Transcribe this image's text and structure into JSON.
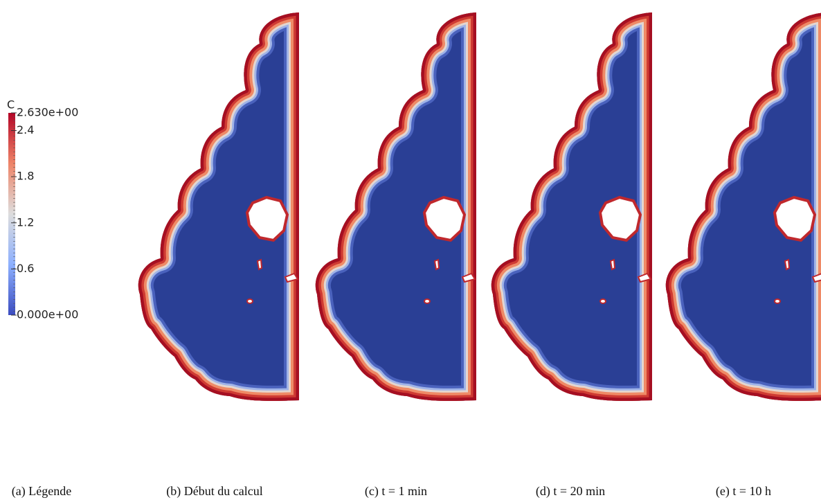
{
  "legend": {
    "title": "C",
    "ticks": [
      {
        "value": 2.63,
        "label": "2.630e+00"
      },
      2.4,
      1.8,
      1.2,
      0.6,
      {
        "value": 0,
        "label": "0.000e+00"
      }
    ]
  },
  "captions": [
    "(a) Légende",
    "(b) Début du calcul",
    "(c) t = 1 min",
    "(d) t = 20 min",
    "(e) t = 10 h"
  ]
}
